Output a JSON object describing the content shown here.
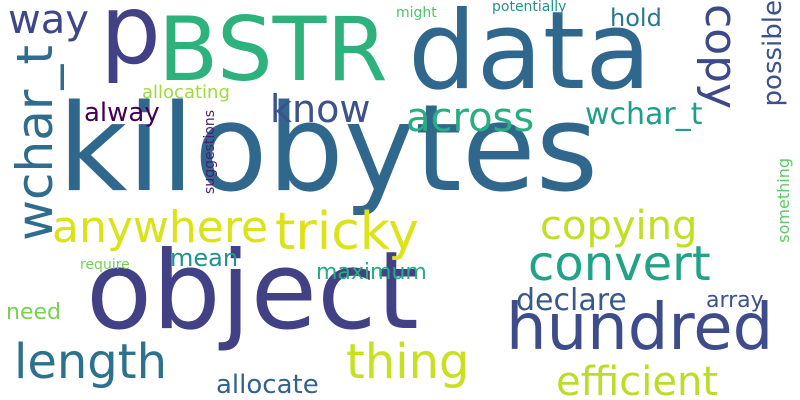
{
  "cloud": {
    "words": {
      "kilobytes": {
        "text": "kilobytes",
        "color": "#30678d"
      },
      "data": {
        "text": "data",
        "color": "#30678d"
      },
      "object": {
        "text": "object",
        "color": "#424186"
      },
      "bstr": {
        "text": "BSTR",
        "color": "#2db27d"
      },
      "p": {
        "text": "p",
        "color": "#424186"
      },
      "hundred": {
        "text": "hundred",
        "color": "#3e4c8a"
      },
      "tricky": {
        "text": "tricky",
        "color": "#dde318"
      },
      "convert": {
        "text": "convert",
        "color": "#20a386"
      },
      "length": {
        "text": "length",
        "color": "#2c728e"
      },
      "thing": {
        "text": "thing",
        "color": "#c8e020"
      },
      "anywhere": {
        "text": "anywhere",
        "color": "#dae319"
      },
      "copying": {
        "text": "copying",
        "color": "#c2df23"
      },
      "efficient": {
        "text": "efficient",
        "color": "#bade28"
      },
      "across": {
        "text": "across",
        "color": "#28ae80"
      },
      "know": {
        "text": "know",
        "color": "#3b528b"
      },
      "way": {
        "text": "way",
        "color": "#3f4788"
      },
      "copy": {
        "text": "copy",
        "color": "#3e4989"
      },
      "wchar_t_big": {
        "text": "wchar_t",
        "color": "#2f6c8e"
      },
      "wchar_t": {
        "text": "wchar_t",
        "color": "#1f9e89"
      },
      "declare": {
        "text": "declare",
        "color": "#38598c"
      },
      "allocate": {
        "text": "allocate",
        "color": "#33638d"
      },
      "hold": {
        "text": "hold",
        "color": "#2a788e"
      },
      "always": {
        "text": "alway",
        "color": "#440154"
      },
      "possible": {
        "text": "possible",
        "color": "#3b528b"
      },
      "mean": {
        "text": "mean",
        "color": "#21918c"
      },
      "maximum": {
        "text": "maximum",
        "color": "#27ad81"
      },
      "need": {
        "text": "need",
        "color": "#7ad151"
      },
      "array": {
        "text": "array",
        "color": "#3b528b"
      },
      "allocating": {
        "text": "allocating",
        "color": "#a0da39"
      },
      "suggestions": {
        "text": "suggestions",
        "color": "#481f70"
      },
      "something": {
        "text": "something",
        "color": "#5ec962"
      },
      "potentially": {
        "text": "potentially",
        "color": "#21918c"
      },
      "might": {
        "text": "might",
        "color": "#4ac16d"
      },
      "require": {
        "text": "require",
        "color": "#73d056"
      }
    }
  }
}
